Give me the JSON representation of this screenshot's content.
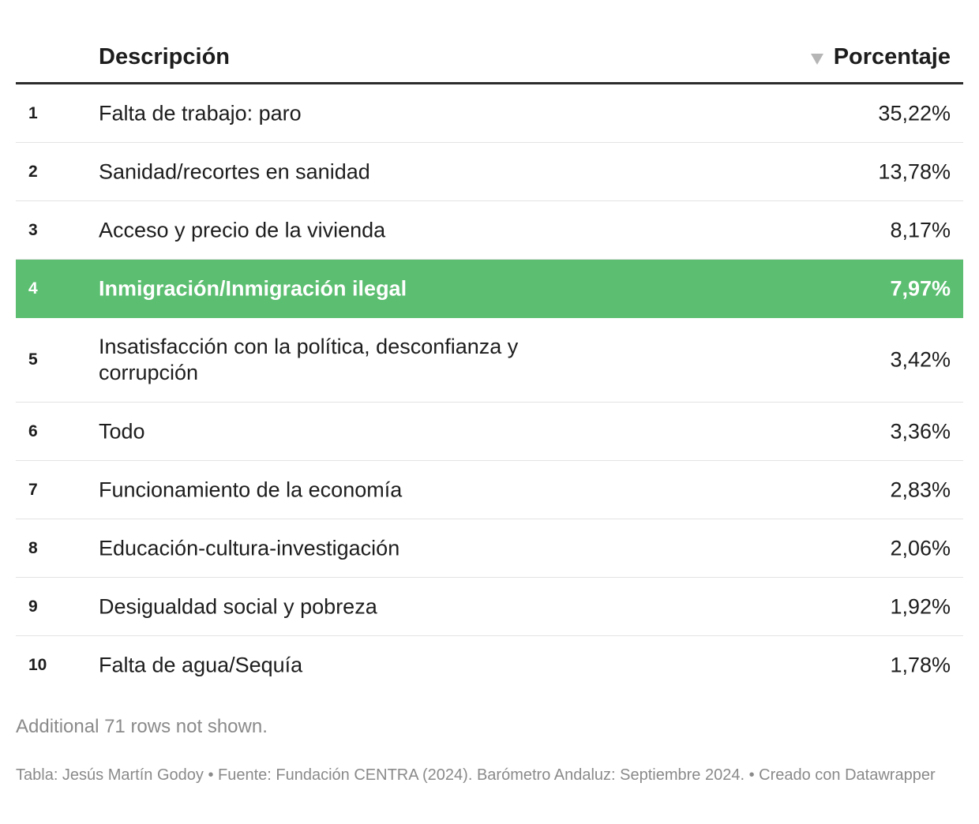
{
  "chart_data": {
    "type": "table",
    "columns": [
      "Descripción",
      "Porcentaje"
    ],
    "sort_column": "Porcentaje",
    "sort_order": "descending",
    "rows": [
      {
        "rank": "1",
        "descripcion": "Falta de trabajo: paro",
        "porcentaje": "35,22%",
        "value": 35.22
      },
      {
        "rank": "2",
        "descripcion": "Sanidad/recortes en sanidad",
        "porcentaje": "13,78%",
        "value": 13.78
      },
      {
        "rank": "3",
        "descripcion": "Acceso y precio de la vivienda",
        "porcentaje": "8,17%",
        "value": 8.17
      },
      {
        "rank": "4",
        "descripcion": "Inmigración/Inmigración ilegal",
        "porcentaje": "7,97%",
        "value": 7.97,
        "highlighted": true
      },
      {
        "rank": "5",
        "descripcion": "Insatisfacción con la política, desconfianza y corrupción",
        "porcentaje": "3,42%",
        "value": 3.42
      },
      {
        "rank": "6",
        "descripcion": "Todo",
        "porcentaje": "3,36%",
        "value": 3.36
      },
      {
        "rank": "7",
        "descripcion": "Funcionamiento de la economía",
        "porcentaje": "2,83%",
        "value": 2.83
      },
      {
        "rank": "8",
        "descripcion": "Educación-cultura-investigación",
        "porcentaje": "2,06%",
        "value": 2.06
      },
      {
        "rank": "9",
        "descripcion": "Desigualdad social y pobreza",
        "porcentaje": "1,92%",
        "value": 1.92
      },
      {
        "rank": "10",
        "descripcion": "Falta de agua/Sequía",
        "porcentaje": "1,78%",
        "value": 1.78
      }
    ],
    "highlight_color": "#5cbe71"
  },
  "note": "Additional 71 rows not shown.",
  "footer": "Tabla: Jesús Martín Godoy • Fuente: Fundación CENTRA (2024). Barómetro Andaluz: Septiembre 2024. • Creado con Datawrapper"
}
